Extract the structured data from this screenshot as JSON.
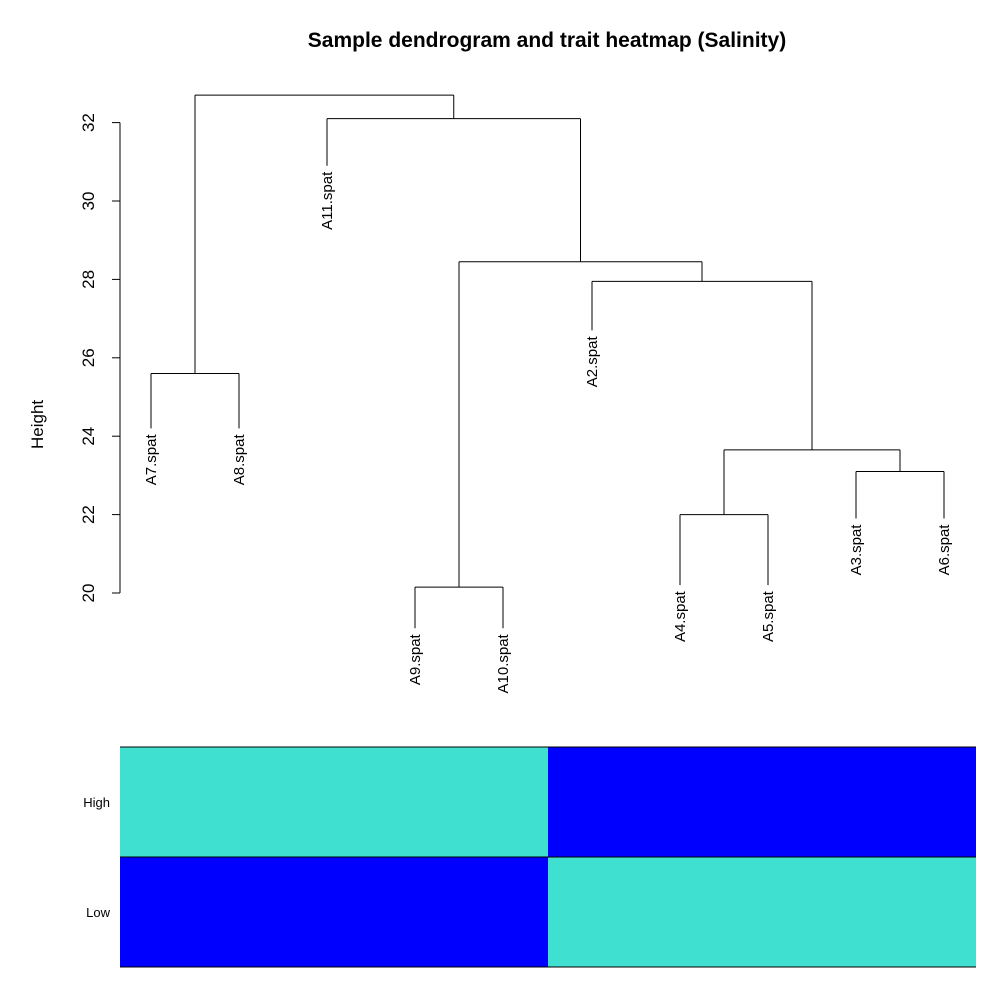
{
  "title": "Sample dendrogram and trait heatmap (Salinity)",
  "chart_data": [
    {
      "type": "dendrogram",
      "title": "Sample dendrogram and trait heatmap (Salinity)",
      "ylabel": "Height",
      "ylim": [
        20,
        32.8
      ],
      "yticks": [
        20,
        22,
        24,
        26,
        28,
        30,
        32
      ],
      "leaves": [
        "A7.spat",
        "A8.spat",
        "A11.spat",
        "A9.spat",
        "A10.spat",
        "A2.spat",
        "A4.spat",
        "A5.spat",
        "A3.spat",
        "A6.spat"
      ],
      "leaf_tip_heights": [
        24.2,
        24.2,
        30.9,
        19.1,
        19.1,
        26.7,
        20.2,
        20.2,
        21.9,
        21.9
      ],
      "merges": [
        {
          "left": "A9.spat",
          "right": "A10.spat",
          "height": 20.15
        },
        {
          "left": "A4.spat",
          "right": "A5.spat",
          "height": 22.0
        },
        {
          "left": "A3.spat",
          "right": "A6.spat",
          "height": 23.1
        },
        {
          "left": "A4+A5",
          "right": "A3+A6",
          "height": 23.65
        },
        {
          "left": "A7.spat",
          "right": "A8.spat",
          "height": 25.6
        },
        {
          "left": "A2.spat",
          "right": "A4+A5+A3+A6",
          "height": 27.95
        },
        {
          "left": "A9+A10",
          "right": "A2+A4+A5+A3+A6",
          "height": 28.45
        },
        {
          "left": "A11.spat",
          "right": "A9..A6",
          "height": 32.1
        },
        {
          "left": "A7+A8",
          "right": "A11..A6",
          "height": 32.7
        }
      ]
    },
    {
      "type": "heatmap",
      "rows": [
        "High",
        "Low"
      ],
      "columns": 2,
      "cells": [
        [
          "turquoise",
          "blue"
        ],
        [
          "blue",
          "turquoise"
        ]
      ],
      "colors": {
        "turquoise": "#40E0D0",
        "blue": "#0000FF"
      }
    }
  ]
}
